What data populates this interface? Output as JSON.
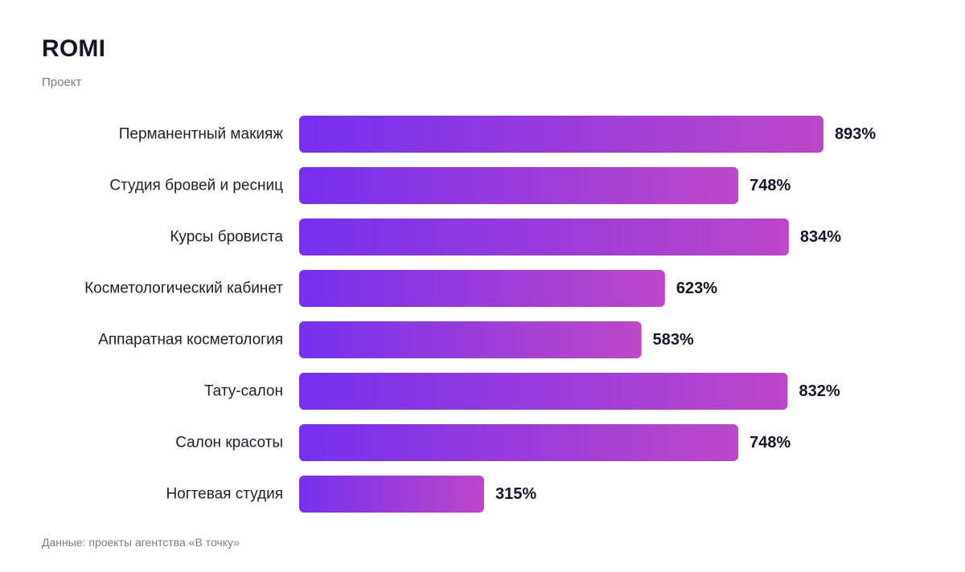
{
  "chart_data": {
    "type": "bar",
    "orientation": "horizontal",
    "title": "ROMI",
    "subtitle": "Проект",
    "categories": [
      "Перманентный макияж",
      "Студия бровей и ресниц",
      "Курсы бровиста",
      "Косметологический кабинет",
      "Аппаратная косметология",
      "Тату-салон",
      "Салон красоты",
      "Ногтевая студия"
    ],
    "values": [
      893,
      748,
      834,
      623,
      583,
      832,
      748,
      315
    ],
    "value_labels": [
      "893%",
      "748%",
      "834%",
      "623%",
      "583%",
      "832%",
      "748%",
      "315%"
    ],
    "unit": "%",
    "xlim": [
      0,
      893
    ],
    "grid": false,
    "legend": "none",
    "colors": {
      "bar_start": "#7530EE",
      "bar_end": "#BD47C9"
    },
    "source": "Данные: проекты агентства «В точку»"
  }
}
